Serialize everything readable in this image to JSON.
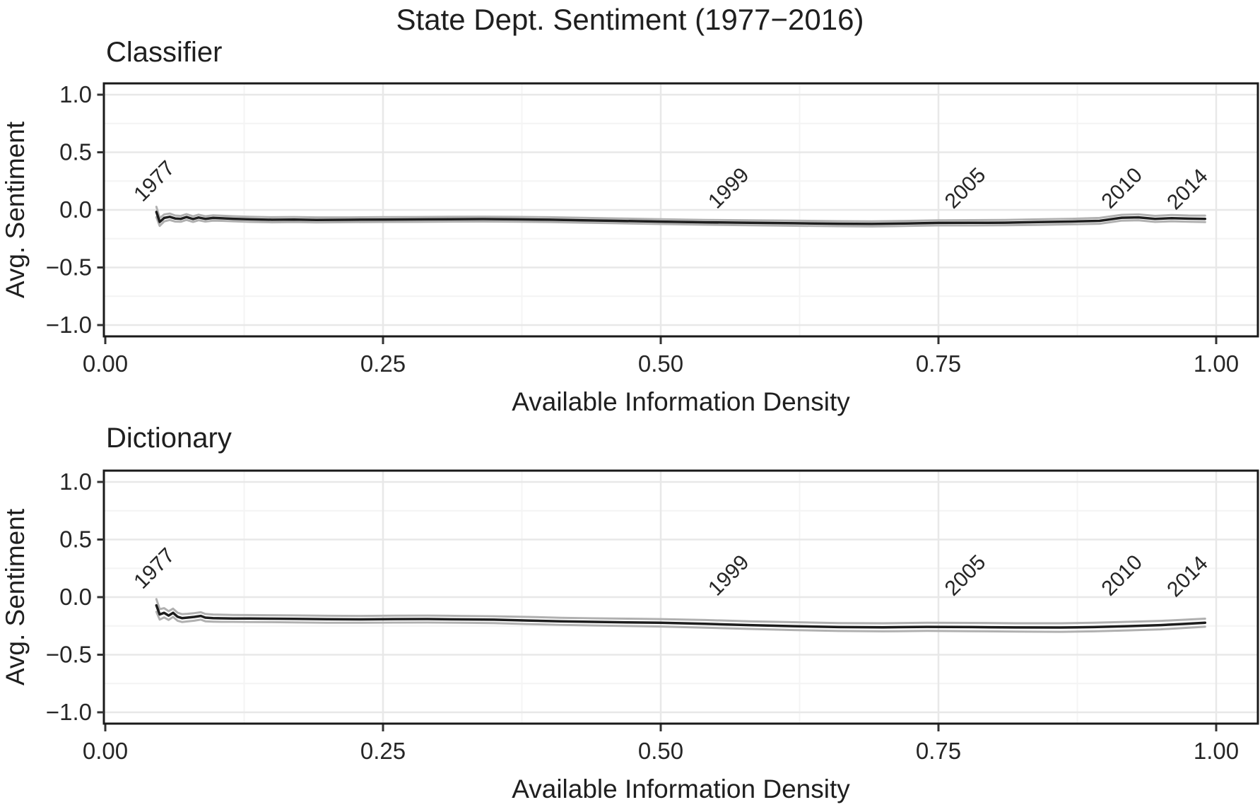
{
  "title": "State Dept. Sentiment (1977−2016)",
  "colors": {
    "line": "#1d1d1d",
    "band_edge": "#b0b0b0",
    "panel_border": "#1a1a1a",
    "grid_major": "#e8e8e8",
    "grid_minor": "#f4f4f4",
    "tick_mark": "#333333",
    "text": "#1f1f1f"
  },
  "chart_data": [
    {
      "type": "line",
      "panel_title": "Classifier",
      "xlabel": "Available Information Density",
      "ylabel": "Avg. Sentiment",
      "xlim": [
        0.0,
        1.04
      ],
      "ylim": [
        -1.1,
        1.1
      ],
      "grid": true,
      "legend": false,
      "x_ticks": [
        {
          "v": 0.0,
          "label": "0.00"
        },
        {
          "v": 0.25,
          "label": "0.25"
        },
        {
          "v": 0.5,
          "label": "0.50"
        },
        {
          "v": 0.75,
          "label": "0.75"
        },
        {
          "v": 1.0,
          "label": "1.00"
        }
      ],
      "y_ticks": [
        {
          "v": 1.0,
          "label": "1.0"
        },
        {
          "v": 0.5,
          "label": "0.5"
        },
        {
          "v": 0.0,
          "label": "0.0"
        },
        {
          "v": -0.5,
          "label": "−0.5"
        },
        {
          "v": -1.0,
          "label": "−1.0"
        }
      ],
      "x_minor": [
        0.125,
        0.375,
        0.625,
        0.875
      ],
      "y_minor": [
        0.75,
        0.25,
        -0.25,
        -0.75
      ],
      "annotations": [
        {
          "label": "1977",
          "x": 0.044,
          "y": 0.25
        },
        {
          "label": "1999",
          "x": 0.561,
          "y": 0.19
        },
        {
          "label": "2005",
          "x": 0.774,
          "y": 0.19
        },
        {
          "label": "2010",
          "x": 0.915,
          "y": 0.19
        },
        {
          "label": "2014",
          "x": 0.974,
          "y": 0.18
        }
      ],
      "series": {
        "points_format": "[x, avg_sentiment, band_halfwidth]",
        "points": [
          [
            0.046,
            -0.018,
            0.045
          ],
          [
            0.049,
            -0.105,
            0.034
          ],
          [
            0.053,
            -0.07,
            0.03
          ],
          [
            0.058,
            -0.06,
            0.028
          ],
          [
            0.063,
            -0.075,
            0.026
          ],
          [
            0.068,
            -0.078,
            0.025
          ],
          [
            0.073,
            -0.062,
            0.025
          ],
          [
            0.079,
            -0.08,
            0.024
          ],
          [
            0.084,
            -0.066,
            0.024
          ],
          [
            0.09,
            -0.078,
            0.023
          ],
          [
            0.097,
            -0.07,
            0.023
          ],
          [
            0.105,
            -0.073,
            0.022
          ],
          [
            0.115,
            -0.077,
            0.022
          ],
          [
            0.13,
            -0.082,
            0.022
          ],
          [
            0.15,
            -0.086,
            0.022
          ],
          [
            0.17,
            -0.084,
            0.022
          ],
          [
            0.19,
            -0.087,
            0.022
          ],
          [
            0.22,
            -0.086,
            0.021
          ],
          [
            0.25,
            -0.084,
            0.021
          ],
          [
            0.28,
            -0.083,
            0.021
          ],
          [
            0.31,
            -0.081,
            0.021
          ],
          [
            0.34,
            -0.08,
            0.021
          ],
          [
            0.37,
            -0.082,
            0.021
          ],
          [
            0.4,
            -0.085,
            0.021
          ],
          [
            0.43,
            -0.09,
            0.021
          ],
          [
            0.46,
            -0.095,
            0.021
          ],
          [
            0.5,
            -0.102,
            0.021
          ],
          [
            0.54,
            -0.108,
            0.021
          ],
          [
            0.58,
            -0.112,
            0.021
          ],
          [
            0.62,
            -0.116,
            0.022
          ],
          [
            0.66,
            -0.12,
            0.022
          ],
          [
            0.69,
            -0.122,
            0.022
          ],
          [
            0.72,
            -0.118,
            0.022
          ],
          [
            0.75,
            -0.113,
            0.022
          ],
          [
            0.78,
            -0.112,
            0.023
          ],
          [
            0.81,
            -0.111,
            0.023
          ],
          [
            0.84,
            -0.106,
            0.024
          ],
          [
            0.87,
            -0.101,
            0.024
          ],
          [
            0.895,
            -0.095,
            0.025
          ],
          [
            0.915,
            -0.068,
            0.025
          ],
          [
            0.93,
            -0.065,
            0.026
          ],
          [
            0.945,
            -0.078,
            0.026
          ],
          [
            0.96,
            -0.072,
            0.027
          ],
          [
            0.975,
            -0.076,
            0.027
          ],
          [
            0.99,
            -0.078,
            0.028
          ]
        ]
      }
    },
    {
      "type": "line",
      "panel_title": "Dictionary",
      "xlabel": "Available Information Density",
      "ylabel": "Avg. Sentiment",
      "xlim": [
        0.0,
        1.04
      ],
      "ylim": [
        -1.1,
        1.1
      ],
      "grid": true,
      "legend": false,
      "x_ticks": [
        {
          "v": 0.0,
          "label": "0.00"
        },
        {
          "v": 0.25,
          "label": "0.25"
        },
        {
          "v": 0.5,
          "label": "0.50"
        },
        {
          "v": 0.75,
          "label": "0.75"
        },
        {
          "v": 1.0,
          "label": "1.00"
        }
      ],
      "y_ticks": [
        {
          "v": 1.0,
          "label": "1.0"
        },
        {
          "v": 0.5,
          "label": "0.5"
        },
        {
          "v": 0.0,
          "label": "0.0"
        },
        {
          "v": -0.5,
          "label": "−0.5"
        },
        {
          "v": -1.0,
          "label": "−1.0"
        }
      ],
      "x_minor": [
        0.125,
        0.375,
        0.625,
        0.875
      ],
      "y_minor": [
        0.75,
        0.25,
        -0.25,
        -0.75
      ],
      "annotations": [
        {
          "label": "1977",
          "x": 0.044,
          "y": 0.25
        },
        {
          "label": "1999",
          "x": 0.561,
          "y": 0.19
        },
        {
          "label": "2005",
          "x": 0.774,
          "y": 0.19
        },
        {
          "label": "2010",
          "x": 0.915,
          "y": 0.19
        },
        {
          "label": "2014",
          "x": 0.974,
          "y": 0.18
        }
      ],
      "series": {
        "points_format": "[x, avg_sentiment, band_halfwidth]",
        "points": [
          [
            0.046,
            -0.072,
            0.055
          ],
          [
            0.049,
            -0.15,
            0.045
          ],
          [
            0.053,
            -0.136,
            0.04
          ],
          [
            0.057,
            -0.16,
            0.038
          ],
          [
            0.061,
            -0.136,
            0.036
          ],
          [
            0.065,
            -0.17,
            0.035
          ],
          [
            0.069,
            -0.182,
            0.034
          ],
          [
            0.074,
            -0.178,
            0.033
          ],
          [
            0.08,
            -0.172,
            0.033
          ],
          [
            0.086,
            -0.163,
            0.032
          ],
          [
            0.09,
            -0.178,
            0.032
          ],
          [
            0.097,
            -0.182,
            0.031
          ],
          [
            0.105,
            -0.184,
            0.031
          ],
          [
            0.115,
            -0.185,
            0.03
          ],
          [
            0.13,
            -0.186,
            0.03
          ],
          [
            0.15,
            -0.187,
            0.03
          ],
          [
            0.17,
            -0.189,
            0.03
          ],
          [
            0.2,
            -0.192,
            0.03
          ],
          [
            0.23,
            -0.193,
            0.03
          ],
          [
            0.26,
            -0.191,
            0.03
          ],
          [
            0.29,
            -0.19,
            0.03
          ],
          [
            0.32,
            -0.193,
            0.03
          ],
          [
            0.35,
            -0.196,
            0.03
          ],
          [
            0.38,
            -0.203,
            0.031
          ],
          [
            0.41,
            -0.21,
            0.031
          ],
          [
            0.44,
            -0.215,
            0.031
          ],
          [
            0.47,
            -0.219,
            0.032
          ],
          [
            0.5,
            -0.223,
            0.032
          ],
          [
            0.54,
            -0.232,
            0.033
          ],
          [
            0.58,
            -0.243,
            0.033
          ],
          [
            0.62,
            -0.252,
            0.034
          ],
          [
            0.66,
            -0.26,
            0.034
          ],
          [
            0.7,
            -0.262,
            0.035
          ],
          [
            0.74,
            -0.258,
            0.035
          ],
          [
            0.78,
            -0.26,
            0.036
          ],
          [
            0.82,
            -0.263,
            0.036
          ],
          [
            0.86,
            -0.264,
            0.037
          ],
          [
            0.89,
            -0.26,
            0.037
          ],
          [
            0.92,
            -0.252,
            0.037
          ],
          [
            0.95,
            -0.243,
            0.037
          ],
          [
            0.97,
            -0.233,
            0.036
          ],
          [
            0.99,
            -0.222,
            0.035
          ]
        ]
      }
    }
  ]
}
